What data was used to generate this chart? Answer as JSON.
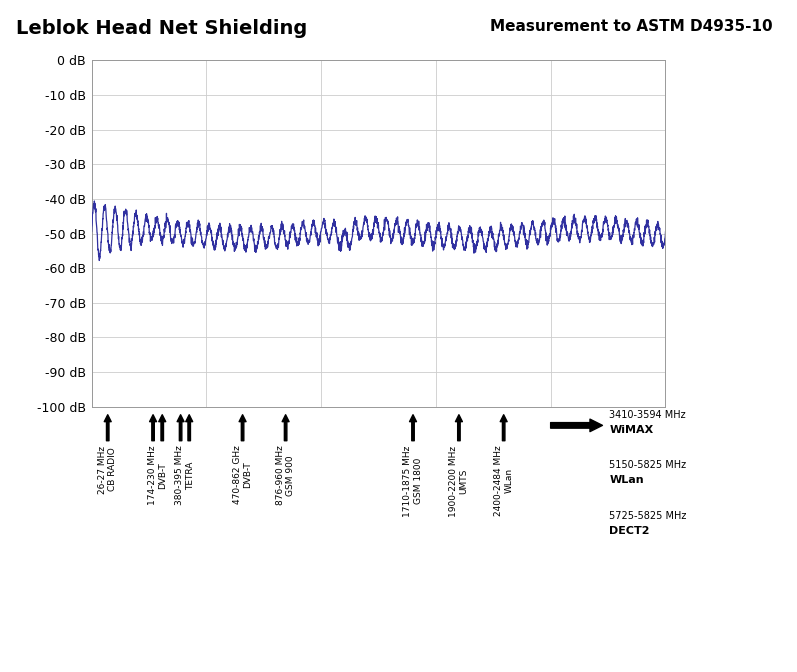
{
  "title_left": "Leblok Head Net Shielding",
  "title_right": "Measurement to ASTM D4935-10",
  "ylabel_ticks": [
    "0 dB",
    "-10 dB",
    "-20 dB",
    "-30 dB",
    "-40 dB",
    "-50 dB",
    "-60 dB",
    "-70 dB",
    "-80 dB",
    "-90 dB",
    "-100 dB"
  ],
  "ytick_vals": [
    0,
    -10,
    -20,
    -30,
    -40,
    -50,
    -60,
    -70,
    -80,
    -90,
    -100
  ],
  "line_color": "#3030a0",
  "line_width": 0.9,
  "bg_color": "#ffffff",
  "grid_color": "#cccccc",
  "annotations": [
    {
      "label": "26-27 MHz\nCB RADIO",
      "x_positions": [
        0.028
      ]
    },
    {
      "label": "174-230 MHz\nDVB-T",
      "x_positions": [
        0.107,
        0.123
      ]
    },
    {
      "label": "380-395 MHz\nTETRA",
      "x_positions": [
        0.155,
        0.17
      ]
    },
    {
      "label": "470-862 GHz\nDVB-T",
      "x_positions": [
        0.263
      ]
    },
    {
      "label": "876-960 MHz\nGSM 900",
      "x_positions": [
        0.338
      ]
    },
    {
      "label": "1710-1875 MHz\nGSM 1800",
      "x_positions": [
        0.56
      ]
    },
    {
      "label": "1900-2200 MHz\nUMTS",
      "x_positions": [
        0.64
      ]
    },
    {
      "label": "2400-2484 MHz\nWLan",
      "x_positions": [
        0.718
      ]
    }
  ],
  "legend_lines": [
    {
      "freq": "3410-3594 MHz",
      "name": "WiMAX"
    },
    {
      "freq": "5150-5825 MHz",
      "name": "WLan"
    },
    {
      "freq": "5725-5825 MHz",
      "name": "DECT2"
    }
  ]
}
